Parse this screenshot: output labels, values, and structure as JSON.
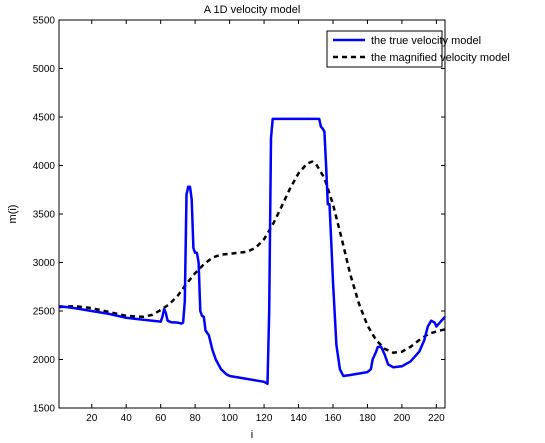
{
  "chart_data": {
    "type": "line",
    "title": "A 1D velocity model",
    "xlabel": "i",
    "ylabel": "m(i)",
    "xlim": [
      1,
      225
    ],
    "ylim": [
      1500,
      5500
    ],
    "xticks": [
      20,
      40,
      60,
      80,
      100,
      120,
      140,
      160,
      180,
      200,
      220
    ],
    "yticks": [
      1500,
      2000,
      2500,
      3000,
      3500,
      4000,
      4500,
      5000,
      5500
    ],
    "grid": false,
    "legend_position": "top-right",
    "series": [
      {
        "name": "the true velocity model",
        "color": "#0000ff",
        "style": "solid",
        "points": [
          [
            1,
            2550
          ],
          [
            10,
            2530
          ],
          [
            20,
            2500
          ],
          [
            30,
            2470
          ],
          [
            40,
            2430
          ],
          [
            50,
            2410
          ],
          [
            58,
            2395
          ],
          [
            60,
            2390
          ],
          [
            61,
            2440
          ],
          [
            62,
            2520
          ],
          [
            63,
            2480
          ],
          [
            64,
            2400
          ],
          [
            66,
            2385
          ],
          [
            70,
            2380
          ],
          [
            72,
            2370
          ],
          [
            73,
            2380
          ],
          [
            74,
            2600
          ],
          [
            75,
            3700
          ],
          [
            76,
            3780
          ],
          [
            77,
            3780
          ],
          [
            78,
            3650
          ],
          [
            79,
            3150
          ],
          [
            80,
            3100
          ],
          [
            81,
            3100
          ],
          [
            82,
            3000
          ],
          [
            83,
            2500
          ],
          [
            84,
            2450
          ],
          [
            85,
            2440
          ],
          [
            86,
            2300
          ],
          [
            88,
            2250
          ],
          [
            90,
            2100
          ],
          [
            92,
            2000
          ],
          [
            95,
            1900
          ],
          [
            98,
            1850
          ],
          [
            100,
            1830
          ],
          [
            110,
            1800
          ],
          [
            120,
            1770
          ],
          [
            122,
            1750
          ],
          [
            123,
            2500
          ],
          [
            124,
            4280
          ],
          [
            125,
            4480
          ],
          [
            130,
            4480
          ],
          [
            140,
            4480
          ],
          [
            150,
            4480
          ],
          [
            152,
            4480
          ],
          [
            153,
            4400
          ],
          [
            154,
            4380
          ],
          [
            155,
            4350
          ],
          [
            156,
            4000
          ],
          [
            157,
            3600
          ],
          [
            158,
            3600
          ],
          [
            159,
            3200
          ],
          [
            160,
            2800
          ],
          [
            162,
            2150
          ],
          [
            164,
            1900
          ],
          [
            166,
            1830
          ],
          [
            170,
            1840
          ],
          [
            180,
            1870
          ],
          [
            182,
            1900
          ],
          [
            183,
            2000
          ],
          [
            185,
            2080
          ],
          [
            186,
            2130
          ],
          [
            188,
            2130
          ],
          [
            190,
            2050
          ],
          [
            192,
            1950
          ],
          [
            195,
            1920
          ],
          [
            200,
            1930
          ],
          [
            205,
            1980
          ],
          [
            210,
            2080
          ],
          [
            213,
            2200
          ],
          [
            215,
            2340
          ],
          [
            217,
            2400
          ],
          [
            219,
            2380
          ],
          [
            220,
            2340
          ],
          [
            222,
            2380
          ],
          [
            225,
            2440
          ]
        ]
      },
      {
        "name": "the magnified velocity model",
        "color": "#000000",
        "style": "dashed",
        "points": [
          [
            1,
            2540
          ],
          [
            10,
            2550
          ],
          [
            20,
            2530
          ],
          [
            30,
            2490
          ],
          [
            40,
            2450
          ],
          [
            50,
            2440
          ],
          [
            55,
            2460
          ],
          [
            60,
            2510
          ],
          [
            65,
            2570
          ],
          [
            70,
            2660
          ],
          [
            75,
            2780
          ],
          [
            80,
            2890
          ],
          [
            85,
            2980
          ],
          [
            90,
            3050
          ],
          [
            95,
            3080
          ],
          [
            100,
            3090
          ],
          [
            105,
            3100
          ],
          [
            110,
            3110
          ],
          [
            115,
            3150
          ],
          [
            120,
            3240
          ],
          [
            125,
            3390
          ],
          [
            130,
            3570
          ],
          [
            135,
            3760
          ],
          [
            140,
            3920
          ],
          [
            145,
            4020
          ],
          [
            148,
            4040
          ],
          [
            150,
            4020
          ],
          [
            155,
            3870
          ],
          [
            160,
            3600
          ],
          [
            165,
            3250
          ],
          [
            170,
            2880
          ],
          [
            175,
            2580
          ],
          [
            180,
            2350
          ],
          [
            185,
            2200
          ],
          [
            190,
            2110
          ],
          [
            195,
            2070
          ],
          [
            200,
            2080
          ],
          [
            205,
            2130
          ],
          [
            210,
            2200
          ],
          [
            215,
            2260
          ],
          [
            220,
            2290
          ],
          [
            225,
            2310
          ]
        ]
      }
    ]
  }
}
